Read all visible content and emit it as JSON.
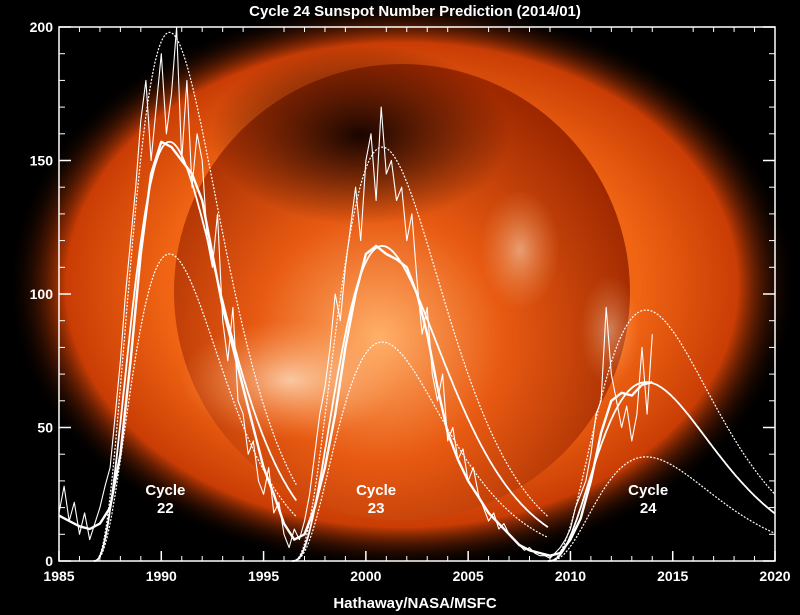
{
  "chart_data": {
    "type": "line",
    "title": "Cycle 24 Sunspot Number Prediction (2014/01)",
    "xlabel": "Hathaway/NASA/MSFC",
    "ylabel": "",
    "xlim": [
      1985,
      2020
    ],
    "ylim": [
      0,
      200
    ],
    "x_ticks": [
      1985,
      1990,
      1995,
      2000,
      2005,
      2010,
      2015,
      2020
    ],
    "y_ticks": [
      0,
      50,
      100,
      150,
      200
    ],
    "grid": false,
    "colors": {
      "background": "#000000",
      "sun": "#e8540c",
      "lines": "#ffffff",
      "text": "#ffffff"
    },
    "cycle_labels": [
      {
        "text": "Cycle\n22",
        "x": 1990.2,
        "y": 18
      },
      {
        "text": "Cycle\n23",
        "x": 2000.5,
        "y": 18
      },
      {
        "text": "Cycle\n24",
        "x": 2013.8,
        "y": 18
      }
    ],
    "cycles": [
      {
        "cycle": 22,
        "start": 1986.7,
        "end": 1996.6,
        "peak_year": 1990.4,
        "low": 115,
        "mid": 157,
        "high": 198
      },
      {
        "cycle": 23,
        "start": 1996.4,
        "end": 2008.9,
        "peak_year": 2000.8,
        "low": 82,
        "mid": 118,
        "high": 155
      },
      {
        "cycle": 24,
        "start": 2008.9,
        "end": 2022.0,
        "peak_year": 2013.7,
        "low": 39,
        "mid": 67,
        "high": 94
      }
    ],
    "series": [
      {
        "style": "monthly",
        "x": [
          1985.0,
          1985.25,
          1985.5,
          1985.75,
          1986.0,
          1986.25,
          1986.5,
          1986.75,
          1987.0,
          1987.25,
          1987.5,
          1987.75,
          1988.0,
          1988.25,
          1988.5,
          1988.75,
          1989.0,
          1989.25,
          1989.5,
          1989.75,
          1990.0,
          1990.25,
          1990.5,
          1990.75,
          1991.0,
          1991.25,
          1991.5,
          1991.75,
          1992.0,
          1992.25,
          1992.5,
          1992.75,
          1993.0,
          1993.25,
          1993.5,
          1993.75,
          1994.0,
          1994.25,
          1994.5,
          1994.75,
          1995.0,
          1995.25,
          1995.5,
          1995.75,
          1996.0,
          1996.25,
          1996.5,
          1996.75,
          1997.0,
          1997.25,
          1997.5,
          1997.75,
          1998.0,
          1998.25,
          1998.5,
          1998.75,
          1999.0,
          1999.25,
          1999.5,
          1999.75,
          2000.0,
          2000.25,
          2000.5,
          2000.75,
          2001.0,
          2001.25,
          2001.5,
          2001.75,
          2002.0,
          2002.25,
          2002.5,
          2002.75,
          2003.0,
          2003.25,
          2003.5,
          2003.75,
          2004.0,
          2004.25,
          2004.5,
          2004.75,
          2005.0,
          2005.25,
          2005.5,
          2005.75,
          2006.0,
          2006.25,
          2006.5,
          2006.75,
          2007.0,
          2007.25,
          2007.5,
          2007.75,
          2008.0,
          2008.25,
          2008.5,
          2008.75,
          2009.0,
          2009.25,
          2009.5,
          2009.75,
          2010.0,
          2010.25,
          2010.5,
          2010.75,
          2011.0,
          2011.25,
          2011.5,
          2011.75,
          2012.0,
          2012.25,
          2012.5,
          2012.75,
          2013.0,
          2013.25,
          2013.5,
          2013.75,
          2014.0
        ],
        "y": [
          18,
          28,
          15,
          22,
          10,
          18,
          8,
          14,
          20,
          28,
          35,
          55,
          75,
          100,
          120,
          140,
          165,
          180,
          150,
          170,
          190,
          160,
          175,
          200,
          150,
          180,
          140,
          160,
          150,
          120,
          110,
          130,
          90,
          75,
          95,
          60,
          55,
          40,
          45,
          30,
          25,
          35,
          18,
          22,
          10,
          5,
          12,
          8,
          15,
          25,
          40,
          55,
          65,
          80,
          100,
          90,
          110,
          125,
          140,
          120,
          150,
          160,
          135,
          170,
          145,
          150,
          135,
          140,
          120,
          130,
          105,
          85,
          95,
          70,
          60,
          70,
          45,
          50,
          38,
          42,
          30,
          35,
          25,
          20,
          15,
          18,
          12,
          14,
          10,
          8,
          6,
          4,
          5,
          3,
          2,
          2,
          1,
          3,
          5,
          8,
          12,
          20,
          25,
          30,
          40,
          55,
          60,
          95,
          70,
          60,
          50,
          58,
          45,
          55,
          80,
          55,
          85
        ]
      },
      {
        "style": "smoothed",
        "x": [
          1985.0,
          1985.5,
          1986.0,
          1986.5,
          1987.0,
          1987.5,
          1988.0,
          1988.5,
          1989.0,
          1989.5,
          1990.0,
          1990.5,
          1991.0,
          1991.5,
          1992.0,
          1992.5,
          1993.0,
          1993.5,
          1994.0,
          1994.5,
          1995.0,
          1995.5,
          1996.0,
          1996.5,
          1997.0,
          1997.5,
          1998.0,
          1998.5,
          1999.0,
          1999.5,
          2000.0,
          2000.5,
          2001.0,
          2001.5,
          2002.0,
          2002.5,
          2003.0,
          2003.5,
          2004.0,
          2004.5,
          2005.0,
          2005.5,
          2006.0,
          2006.5,
          2007.0,
          2007.5,
          2008.0,
          2008.5,
          2009.0,
          2009.5,
          2010.0,
          2010.5,
          2011.0,
          2011.5,
          2012.0,
          2012.5,
          2013.0,
          2013.5,
          2014.0
        ],
        "y": [
          17,
          15,
          13,
          12,
          14,
          20,
          40,
          75,
          115,
          145,
          157,
          155,
          150,
          145,
          135,
          115,
          95,
          80,
          65,
          50,
          35,
          25,
          14,
          8,
          10,
          20,
          35,
          55,
          80,
          100,
          115,
          118,
          115,
          113,
          110,
          100,
          85,
          65,
          48,
          38,
          30,
          24,
          18,
          14,
          10,
          6,
          4,
          3,
          2,
          3,
          8,
          16,
          30,
          48,
          60,
          63,
          62,
          66,
          67
        ]
      }
    ]
  }
}
